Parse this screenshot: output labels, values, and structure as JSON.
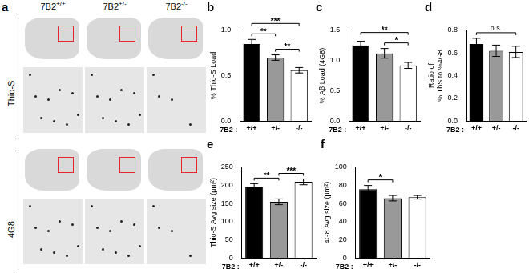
{
  "panel_a": {
    "label": "a",
    "columns": [
      {
        "text": "7B2",
        "sup": "+/+"
      },
      {
        "text": "7B2",
        "sup": "+/-"
      },
      {
        "text": "7B2",
        "sup": "-/-"
      }
    ],
    "rows": [
      "Thio-S",
      "4G8"
    ]
  },
  "chart_data": [
    {
      "panel": "b",
      "type": "bar",
      "y_label": "% Thio-S Load",
      "x_label": "7B2 :",
      "categories": [
        "+/+",
        "+/-",
        "-/-"
      ],
      "values": [
        0.85,
        0.7,
        0.56
      ],
      "errors": [
        0.05,
        0.03,
        0.03
      ],
      "colors": [
        "#000000",
        "#999999",
        "#ffffff"
      ],
      "ylim": [
        0,
        1
      ],
      "yticks": [
        {
          "value": 0,
          "label": "0.0"
        },
        0.5,
        {
          "value": 1,
          "label": "1.0"
        }
      ],
      "grid": false,
      "annotations": [
        {
          "from": "+/+",
          "to": "+/-",
          "label": "**"
        },
        {
          "from": "+/-",
          "to": "-/-",
          "label": "**"
        },
        {
          "from": "+/+",
          "to": "-/-",
          "label": "***"
        }
      ]
    },
    {
      "panel": "c",
      "type": "bar",
      "y_label": "% Aβ Load (4G8)",
      "x_label": "7B2 :",
      "categories": [
        "+/+",
        "+/-",
        "-/-"
      ],
      "values": [
        1.25,
        1.12,
        0.92
      ],
      "errors": [
        0.07,
        0.08,
        0.05
      ],
      "colors": [
        "#000000",
        "#999999",
        "#ffffff"
      ],
      "ylim": [
        0,
        1.5
      ],
      "yticks": [
        {
          "value": 0,
          "label": "0.0"
        },
        0.5,
        {
          "value": 1,
          "label": "1.0"
        },
        1.5
      ],
      "grid": false,
      "annotations": [
        {
          "from": "+/-",
          "to": "-/-",
          "label": "*"
        },
        {
          "from": "+/+",
          "to": "-/-",
          "label": "**"
        }
      ]
    },
    {
      "panel": "d",
      "type": "bar",
      "y_label": [
        "Ratio of",
        "% ThS to %4G8"
      ],
      "x_label": "7B2 :",
      "categories": [
        "+/+",
        "+/-",
        "-/-"
      ],
      "values": [
        0.68,
        0.62,
        0.61
      ],
      "errors": [
        0.05,
        0.05,
        0.05
      ],
      "colors": [
        "#000000",
        "#999999",
        "#ffffff"
      ],
      "ylim": [
        0,
        0.8
      ],
      "yticks": [
        {
          "value": 0,
          "label": "0.0"
        },
        0.2,
        0.4,
        0.6,
        0.8
      ],
      "grid": false,
      "annotations": [
        {
          "from": "+/+",
          "to": "-/-",
          "label": "n.s."
        }
      ]
    },
    {
      "panel": "e",
      "type": "bar",
      "y_label": "Thio-S Avg size (μm²)",
      "x_label": "7B2 :",
      "categories": [
        "+/+",
        "+/-",
        "-/-"
      ],
      "values": [
        197,
        155,
        210
      ],
      "errors": [
        8,
        8,
        8
      ],
      "colors": [
        "#000000",
        "#999999",
        "#ffffff"
      ],
      "ylim": [
        0,
        250
      ],
      "yticks": [
        0,
        50,
        100,
        150,
        200,
        250
      ],
      "grid": false,
      "annotations": [
        {
          "from": "+/+",
          "to": "+/-",
          "label": "**"
        },
        {
          "from": "+/-",
          "to": "-/-",
          "label": "***"
        }
      ]
    },
    {
      "panel": "f",
      "type": "bar",
      "y_label": "4G8 Avg size (μm²)",
      "x_label": "7B2 :",
      "categories": [
        "+/+",
        "+/-",
        "-/-"
      ],
      "values": [
        76,
        66,
        67
      ],
      "errors": [
        4,
        3,
        2
      ],
      "colors": [
        "#000000",
        "#999999",
        "#ffffff"
      ],
      "ylim": [
        0,
        100
      ],
      "yticks": [
        0,
        20,
        40,
        60,
        80,
        100
      ],
      "grid": false,
      "annotations": [
        {
          "from": "+/+",
          "to": "+/-",
          "label": "*"
        }
      ]
    }
  ]
}
